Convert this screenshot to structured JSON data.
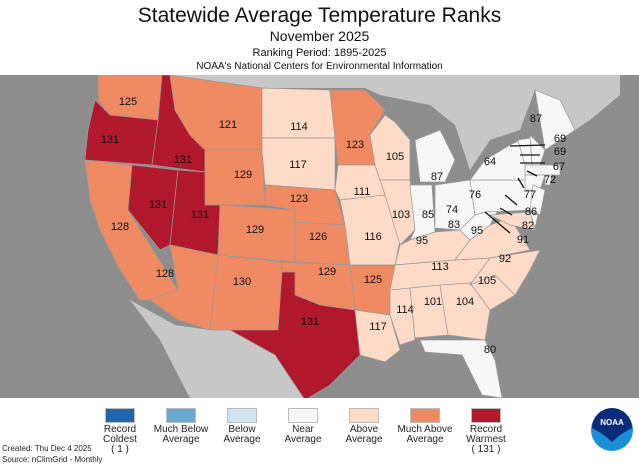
{
  "header": {
    "title": "Statewide Average Temperature Ranks",
    "month": "November 2025",
    "period": "Ranking Period: 1895-2025",
    "org": "NOAA's National Centers for Environmental Information"
  },
  "legend": [
    {
      "label": "Record Coldest",
      "extra": "( 1 )",
      "color": "#2166ac"
    },
    {
      "label": "Much Below Average",
      "extra": "",
      "color": "#67a9cf"
    },
    {
      "label": "Below Average",
      "extra": "",
      "color": "#d1e5f0"
    },
    {
      "label": "Near Average",
      "extra": "",
      "color": "#f7f7f7"
    },
    {
      "label": "Above Average",
      "extra": "",
      "color": "#fddbc7"
    },
    {
      "label": "Much Above Average",
      "extra": "",
      "color": "#ef8a62"
    },
    {
      "label": "Record Warmest",
      "extra": "( 131 )",
      "color": "#b2182b"
    }
  ],
  "states": {
    "WA": {
      "rank": 125,
      "cat": 5
    },
    "OR": {
      "rank": 131,
      "cat": 6
    },
    "CA": {
      "rank": 128,
      "cat": 5
    },
    "NV": {
      "rank": 131,
      "cat": 6
    },
    "ID": {
      "rank": 131,
      "cat": 6
    },
    "MT": {
      "rank": 121,
      "cat": 5
    },
    "WY": {
      "rank": 129,
      "cat": 5
    },
    "UT": {
      "rank": 131,
      "cat": 6
    },
    "CO": {
      "rank": 129,
      "cat": 5
    },
    "AZ": {
      "rank": 128,
      "cat": 5
    },
    "NM": {
      "rank": 130,
      "cat": 5
    },
    "ND": {
      "rank": 114,
      "cat": 4
    },
    "SD": {
      "rank": 117,
      "cat": 4
    },
    "NE": {
      "rank": 123,
      "cat": 5
    },
    "KS": {
      "rank": 126,
      "cat": 5
    },
    "OK": {
      "rank": 129,
      "cat": 5
    },
    "TX": {
      "rank": 131,
      "cat": 6
    },
    "MN": {
      "rank": 123,
      "cat": 5
    },
    "IA": {
      "rank": 111,
      "cat": 4
    },
    "MO": {
      "rank": 116,
      "cat": 4
    },
    "AR": {
      "rank": 125,
      "cat": 5
    },
    "LA": {
      "rank": 117,
      "cat": 4
    },
    "WI": {
      "rank": 105,
      "cat": 4
    },
    "IL": {
      "rank": 103,
      "cat": 4
    },
    "IN": {
      "rank": 85,
      "cat": 3
    },
    "MI": {
      "rank": 87,
      "cat": 3
    },
    "OH": {
      "rank": 74,
      "cat": 3
    },
    "KY": {
      "rank": 95,
      "cat": 4
    },
    "TN": {
      "rank": 113,
      "cat": 4
    },
    "MS": {
      "rank": 114,
      "cat": 4
    },
    "AL": {
      "rank": 101,
      "cat": 4
    },
    "GA": {
      "rank": 104,
      "cat": 4
    },
    "FL": {
      "rank": 80,
      "cat": 3
    },
    "SC": {
      "rank": 105,
      "cat": 4
    },
    "NC": {
      "rank": 92,
      "cat": 4
    },
    "VA": {
      "rank": 95,
      "cat": 4
    },
    "WV": {
      "rank": 83,
      "cat": 3
    },
    "PA": {
      "rank": 76,
      "cat": 3
    },
    "NY": {
      "rank": 64,
      "cat": 3
    },
    "ME": {
      "rank": 87,
      "cat": 3
    },
    "VT": {
      "rank": 69,
      "cat": 3
    },
    "NH": {
      "rank": 69,
      "cat": 3
    },
    "MA": {
      "rank": 67,
      "cat": 3
    },
    "RI": {
      "rank": 72,
      "cat": 3
    },
    "CT": {
      "rank": 77,
      "cat": 3
    },
    "NJ": {
      "rank": 86,
      "cat": 3
    },
    "DE": {
      "rank": 82,
      "cat": 3
    },
    "MD": {
      "rank": 91,
      "cat": 4
    }
  },
  "footer": {
    "created": "Created: Thu Dec  4 2025",
    "source": "Source: nClimGrid - Monthly"
  },
  "logo": {
    "text": "NOAA"
  }
}
